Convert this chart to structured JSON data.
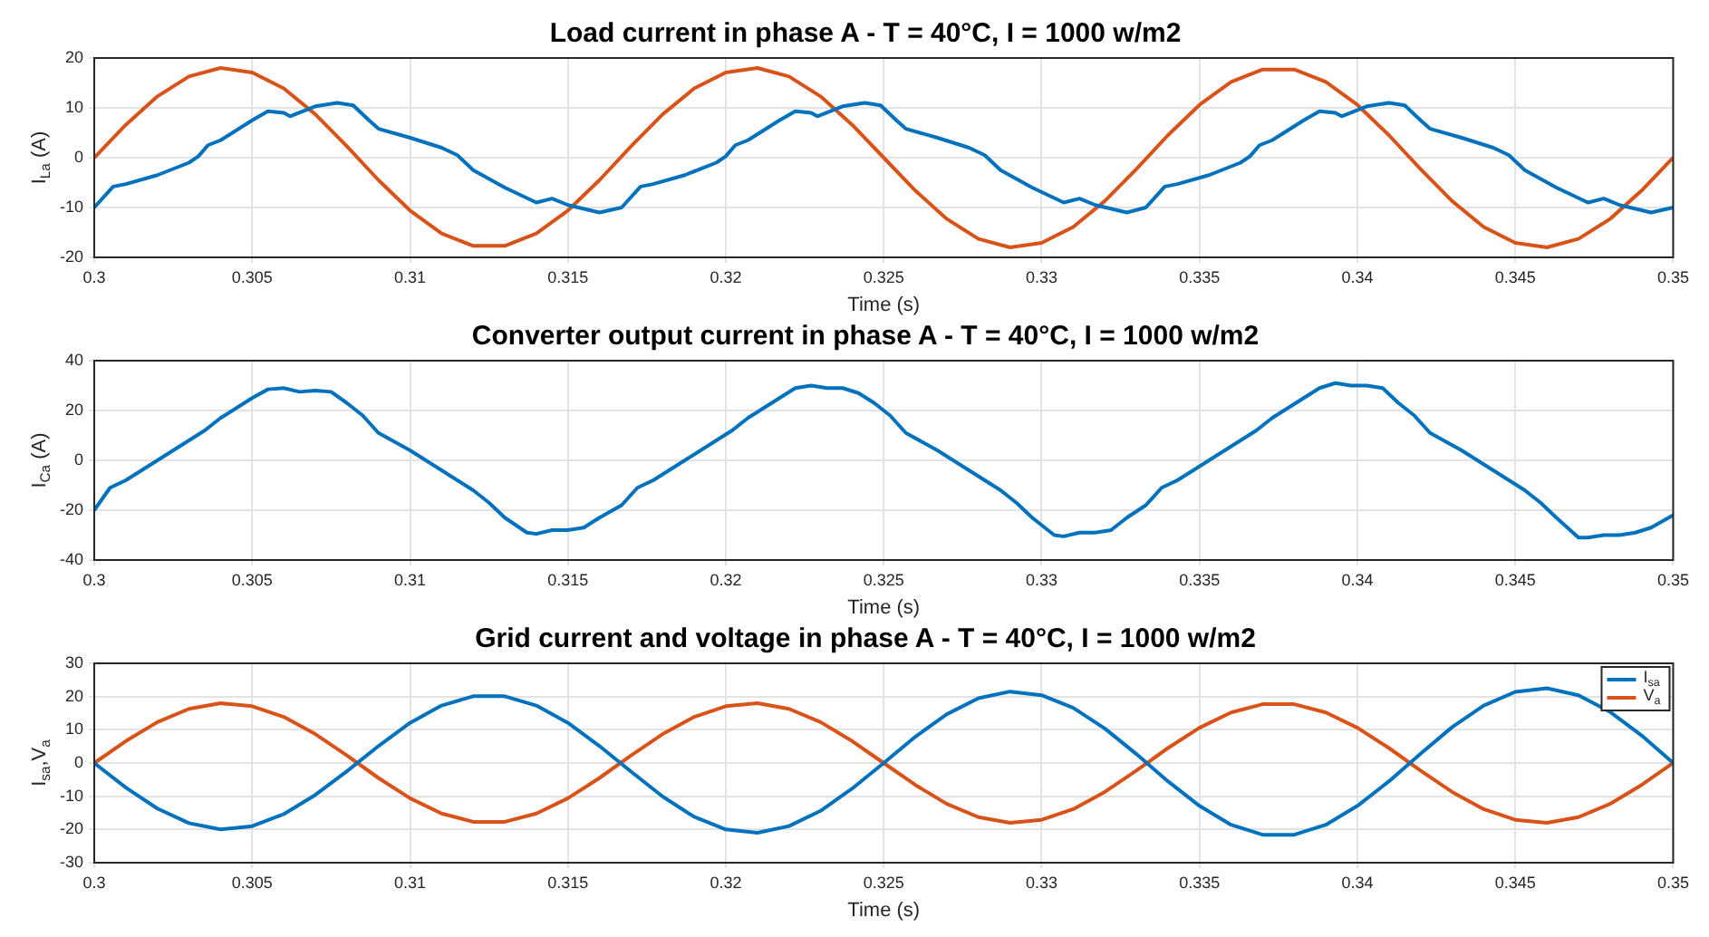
{
  "chart_data": [
    {
      "type": "line",
      "title": "Load current in phase A - T = 40°C, I = 1000 w/m2",
      "xlabel": "Time (s)",
      "ylabel": "I$_{La}$ (A)",
      "x": [
        0.3,
        0.301,
        0.302,
        0.303,
        0.304,
        0.305,
        0.306,
        0.307,
        0.308,
        0.309,
        0.31,
        0.311,
        0.312,
        0.313,
        0.314,
        0.315,
        0.316,
        0.317,
        0.318,
        0.319,
        0.32,
        0.321,
        0.322,
        0.323,
        0.324,
        0.325,
        0.326,
        0.327,
        0.328,
        0.329,
        0.33,
        0.331,
        0.332,
        0.333,
        0.334,
        0.335,
        0.336,
        0.337,
        0.338,
        0.339,
        0.34,
        0.341,
        0.342,
        0.343,
        0.344,
        0.345,
        0.346,
        0.347,
        0.348,
        0.349,
        0.35
      ],
      "series": [
        {
          "color": "#0072bd",
          "x": [
            0.3,
            0.3006,
            0.301,
            0.302,
            0.303,
            0.3033,
            0.3036,
            0.304,
            0.305,
            0.3055,
            0.306,
            0.3062,
            0.307,
            0.3077,
            0.3082,
            0.3087,
            0.309,
            0.31,
            0.311,
            0.3115,
            0.312,
            0.313,
            0.314,
            0.3145,
            0.315,
            0.316,
            0.3167,
            0.3173,
            0.3177,
            0.3187,
            0.3197,
            0.32,
            0.3203,
            0.3207,
            0.3217,
            0.3222,
            0.3227,
            0.3229,
            0.3237,
            0.3244,
            0.3249,
            0.3254,
            0.3257,
            0.3267,
            0.3277,
            0.3282,
            0.3287,
            0.3297,
            0.3307,
            0.3312,
            0.3317,
            0.3327,
            0.3333,
            0.3339,
            0.3343,
            0.3353,
            0.3363,
            0.3366,
            0.3369,
            0.3373,
            0.3383,
            0.3388,
            0.3393,
            0.3395,
            0.3403,
            0.341,
            0.3415,
            0.342,
            0.3423,
            0.3433,
            0.3443,
            0.3448,
            0.3453,
            0.3463,
            0.3473,
            0.3478,
            0.3483,
            0.3493,
            0.35
          ],
          "values": [
            -10,
            -5.8,
            -5.3,
            -3.5,
            -1,
            0.3,
            2.5,
            3.5,
            7.5,
            9.3,
            9,
            8.3,
            10.3,
            11,
            10.5,
            7.5,
            5.8,
            4,
            2,
            0.5,
            -2.5,
            -6,
            -9,
            -8.2,
            -9.5,
            -11,
            -10,
            -5.8,
            -5.3,
            -3.5,
            -1,
            0.3,
            2.5,
            3.5,
            7.5,
            9.3,
            9,
            8.3,
            10.3,
            11,
            10.5,
            7.5,
            5.8,
            4,
            2,
            0.5,
            -2.5,
            -6,
            -9,
            -8.2,
            -9.5,
            -11,
            -10,
            -5.8,
            -5.3,
            -3.5,
            -1,
            0.3,
            2.5,
            3.5,
            7.5,
            9.3,
            9,
            8.3,
            10.3,
            11,
            10.5,
            7.5,
            5.8,
            4,
            2,
            0.5,
            -2.5,
            -6,
            -9,
            -8.2,
            -9.5,
            -11,
            -10
          ]
        },
        {
          "color": "#d95319",
          "values": [
            0,
            6.6,
            12.3,
            16.3,
            18,
            17.1,
            13.9,
            8.7,
            2.3,
            -4.5,
            -10.6,
            -15.2,
            -17.7,
            -17.7,
            -15.2,
            -10.6,
            -4.5,
            2.3,
            8.7,
            13.9,
            17.1,
            18,
            16.3,
            12.3,
            6.6,
            0,
            -6.6,
            -12.3,
            -16.3,
            -18,
            -17.1,
            -13.9,
            -8.7,
            -2.3,
            4.5,
            10.6,
            15.2,
            17.7,
            17.7,
            15.2,
            10.6,
            4.5,
            -2.3,
            -8.7,
            -13.9,
            -17.1,
            -18,
            -16.3,
            -12.3,
            -6.6,
            0
          ]
        }
      ],
      "xlim": [
        0.3,
        0.35
      ],
      "xticks": [
        0.3,
        0.305,
        0.31,
        0.315,
        0.32,
        0.325,
        0.33,
        0.335,
        0.34,
        0.345,
        0.35
      ],
      "ylim": [
        -20,
        20
      ],
      "yticks": [
        -20,
        -10,
        0,
        10,
        20
      ],
      "grid": true,
      "legend": false
    },
    {
      "type": "line",
      "title": "Converter output current in phase A - T = 40°C, I = 1000 w/m2",
      "xlabel": "Time (s)",
      "ylabel": "I$_{Ca}$ (A)",
      "series": [
        {
          "color": "#0072bd",
          "x": [
            0.3,
            0.3005,
            0.301,
            0.302,
            0.303,
            0.3035,
            0.304,
            0.305,
            0.3055,
            0.306,
            0.3065,
            0.307,
            0.3075,
            0.308,
            0.3085,
            0.309,
            0.31,
            0.311,
            0.312,
            0.3125,
            0.313,
            0.3137,
            0.314,
            0.3145,
            0.315,
            0.3155,
            0.316,
            0.3167,
            0.3172,
            0.3177,
            0.3187,
            0.3197,
            0.3202,
            0.3207,
            0.3217,
            0.3222,
            0.3227,
            0.3232,
            0.3237,
            0.3242,
            0.3247,
            0.3252,
            0.3257,
            0.3267,
            0.3277,
            0.3287,
            0.3292,
            0.3297,
            0.3304,
            0.3307,
            0.3312,
            0.3317,
            0.3322,
            0.3327,
            0.3333,
            0.3338,
            0.3343,
            0.3353,
            0.3363,
            0.3368,
            0.3373,
            0.3383,
            0.3388,
            0.3393,
            0.3398,
            0.3403,
            0.3408,
            0.3413,
            0.3418,
            0.3423,
            0.3433,
            0.3443,
            0.3453,
            0.3458,
            0.3463,
            0.347,
            0.3473,
            0.3478,
            0.3483,
            0.3488,
            0.3493,
            0.35
          ],
          "values": [
            -20,
            -11,
            -8,
            0,
            8,
            12,
            17,
            25,
            28.5,
            29,
            27.5,
            28,
            27.5,
            23,
            18,
            11,
            4,
            -4,
            -12,
            -17,
            -23,
            -29,
            -29.5,
            -28,
            -28,
            -27,
            -23,
            -18,
            -11,
            -8,
            0,
            8,
            12,
            17,
            25,
            29,
            30,
            29,
            29,
            27,
            23,
            18,
            11,
            4,
            -4,
            -12,
            -17,
            -23,
            -30,
            -30.5,
            -29,
            -29,
            -28,
            -23,
            -18,
            -11,
            -8,
            0,
            8,
            12,
            17,
            25,
            29,
            31,
            30,
            30,
            29,
            23,
            18,
            11,
            4,
            -4,
            -12,
            -17,
            -23,
            -31,
            -31,
            -30,
            -30,
            -29,
            -27,
            -22
          ]
        }
      ],
      "xlim": [
        0.3,
        0.35
      ],
      "xticks": [
        0.3,
        0.305,
        0.31,
        0.315,
        0.32,
        0.325,
        0.33,
        0.335,
        0.34,
        0.345,
        0.35
      ],
      "ylim": [
        -40,
        40
      ],
      "yticks": [
        -40,
        -20,
        0,
        20,
        40
      ],
      "grid": true,
      "legend": false
    },
    {
      "type": "line",
      "title": "Grid current and voltage in phase A - T = 40°C, I = 1000 w/m2",
      "xlabel": "Time (s)",
      "ylabel": "I$_{sa}$,V$_{a}$",
      "x": [
        0.3,
        0.301,
        0.302,
        0.303,
        0.304,
        0.305,
        0.306,
        0.307,
        0.308,
        0.309,
        0.31,
        0.311,
        0.312,
        0.313,
        0.314,
        0.315,
        0.316,
        0.317,
        0.318,
        0.319,
        0.32,
        0.321,
        0.322,
        0.323,
        0.324,
        0.325,
        0.326,
        0.327,
        0.328,
        0.329,
        0.33,
        0.331,
        0.332,
        0.333,
        0.334,
        0.335,
        0.336,
        0.337,
        0.338,
        0.339,
        0.34,
        0.341,
        0.342,
        0.343,
        0.344,
        0.345,
        0.346,
        0.347,
        0.348,
        0.349,
        0.35
      ],
      "series": [
        {
          "name": "I$_{sa}$",
          "color": "#0072bd",
          "values": [
            0,
            -7.4,
            -13.7,
            -18.1,
            -20,
            -19,
            -15.4,
            -9.6,
            -2.5,
            5.1,
            12.1,
            17.3,
            20.1,
            20.1,
            17.3,
            12.1,
            5.1,
            -2.6,
            -10.1,
            -16.2,
            -20,
            -21,
            -19,
            -14.4,
            -7.7,
            0,
            7.9,
            14.7,
            19.5,
            21.5,
            20.4,
            16.6,
            10.4,
            2.7,
            -5.5,
            -12.9,
            -18.6,
            -21.6,
            -21.6,
            -18.6,
            -12.9,
            -5.5,
            2.8,
            10.8,
            17.3,
            21.4,
            22.5,
            20.4,
            15.4,
            8.3,
            0
          ]
        },
        {
          "name": "V$_{a}$",
          "color": "#d95319",
          "values": [
            0,
            6.6,
            12.3,
            16.3,
            18,
            17.1,
            13.9,
            8.7,
            2.3,
            -4.5,
            -10.6,
            -15.2,
            -17.7,
            -17.7,
            -15.2,
            -10.6,
            -4.5,
            2.3,
            8.7,
            13.9,
            17.1,
            18,
            16.3,
            12.3,
            6.6,
            0,
            -6.6,
            -12.3,
            -16.3,
            -18,
            -17.1,
            -13.9,
            -8.7,
            -2.3,
            4.5,
            10.6,
            15.2,
            17.7,
            17.7,
            15.2,
            10.6,
            4.5,
            -2.3,
            -8.7,
            -13.9,
            -17.1,
            -18,
            -16.3,
            -12.3,
            -6.6,
            0
          ]
        }
      ],
      "xlim": [
        0.3,
        0.35
      ],
      "xticks": [
        0.3,
        0.305,
        0.31,
        0.315,
        0.32,
        0.325,
        0.33,
        0.335,
        0.34,
        0.345,
        0.35
      ],
      "ylim": [
        -30,
        30
      ],
      "yticks": [
        -30,
        -20,
        -10,
        0,
        10,
        20,
        30
      ],
      "grid": true,
      "legend": "top right"
    }
  ]
}
